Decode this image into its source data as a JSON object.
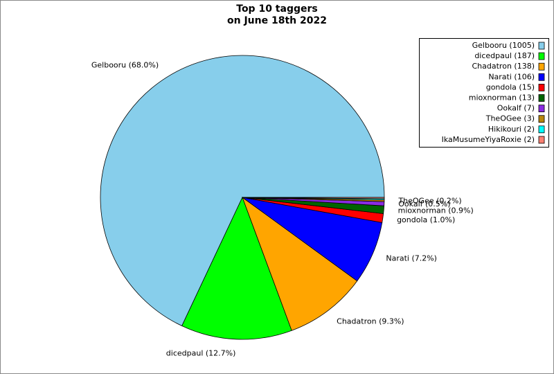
{
  "chart_data": {
    "type": "pie",
    "title": [
      "Top 10 taggers",
      "on June 18th 2022"
    ],
    "categories": [
      "Gelbooru",
      "dicedpaul",
      "Chadatron",
      "Narati",
      "gondola",
      "mioxnorman",
      "Ookalf",
      "TheOGee",
      "Hikikouri",
      "IkaMusumeYiyaRoxie"
    ],
    "values": [
      1005,
      187,
      138,
      106,
      15,
      13,
      7,
      3,
      2,
      2
    ],
    "value_labels": [
      "Gelbooru (68.0%)",
      "dicedpaul (12.7%)",
      "Chadatron (9.3%)",
      "Narati (7.2%)",
      "gondola (1.0%)",
      "mioxnorman (0.9%)",
      "Ookalf (0.5%)",
      "TheOGee (0.2%)",
      null,
      null
    ],
    "legend_labels": [
      "Gelbooru (1005)",
      "dicedpaul (187)",
      "Chadatron (138)",
      "Narati (106)",
      "gondola (15)",
      "mioxnorman (13)",
      "Ookalf (7)",
      "TheOGee (3)",
      "Hikikouri (2)",
      "IkaMusumeYiyaRoxie (2)"
    ],
    "colors": [
      "#87ceeb",
      "#00ff00",
      "#ffa500",
      "#0000ff",
      "#ff0000",
      "#006400",
      "#8a2be2",
      "#b8860b",
      "#00ffff",
      "#fa8072"
    ],
    "legend": "upper right"
  }
}
